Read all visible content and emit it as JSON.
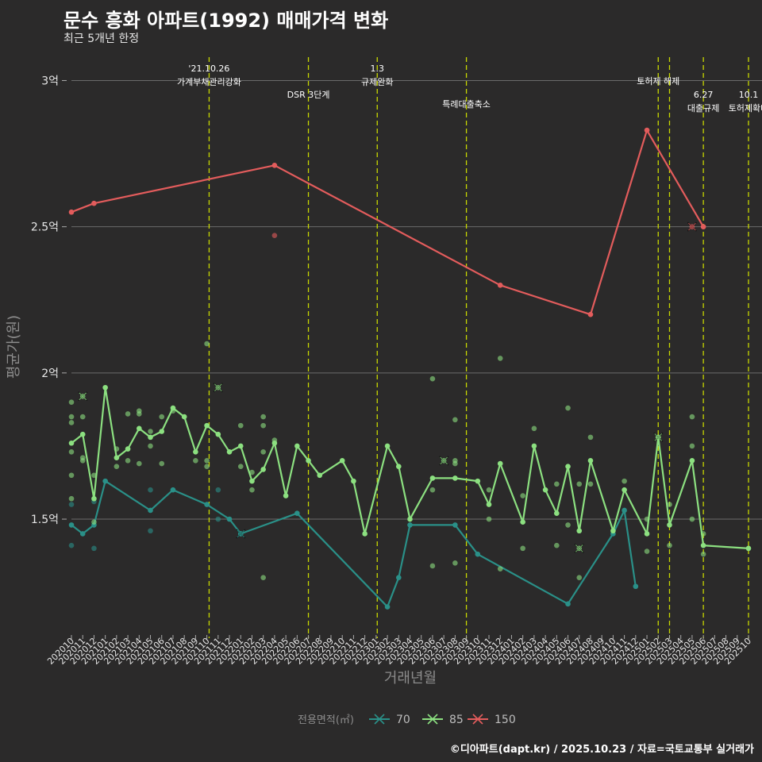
{
  "header": {
    "title": "문수 흥화 아파트(1992) 매매가격 변화",
    "subtitle": "최근 5개년 한정",
    "caption": "©디아파트(dapt.kr) / 2025.10.23 / 자료=국토교통부 실거래가"
  },
  "colors": {
    "s70": "#2a9088",
    "s85": "#8ce080",
    "s150": "#e35c5c",
    "vline": "#c8d800",
    "grid": "#6b6b6b"
  },
  "chart_data": {
    "type": "line",
    "title": "문수 흥화 아파트(1992) 매매가격 변화",
    "subtitle": "최근 5개년 한정",
    "xlabel": "거래년월",
    "ylabel": "평균가(원)",
    "ylim": [
      1.12,
      3.08
    ],
    "y_ticks": [
      {
        "value": 1.5,
        "label": "1.5억"
      },
      {
        "value": 2.0,
        "label": "2억"
      },
      {
        "value": 2.5,
        "label": "2.5억"
      },
      {
        "value": 3.0,
        "label": "3억"
      }
    ],
    "categories": [
      "202010",
      "202011",
      "202012",
      "202101",
      "202102",
      "202103",
      "202104",
      "202105",
      "202106",
      "202107",
      "202108",
      "202109",
      "202110",
      "202111",
      "202112",
      "202201",
      "202202",
      "202203",
      "202204",
      "202205",
      "202206",
      "202207",
      "202208",
      "202209",
      "202210",
      "202211",
      "202212",
      "202301",
      "202302",
      "202303",
      "202304",
      "202305",
      "202306",
      "202307",
      "202308",
      "202309",
      "202310",
      "202311",
      "202312",
      "202401",
      "202402",
      "202403",
      "202404",
      "202405",
      "202406",
      "202407",
      "202408",
      "202409",
      "202410",
      "202411",
      "202412",
      "202501",
      "202502",
      "202503",
      "202504",
      "202505",
      "202506",
      "202507",
      "202508",
      "202509",
      "202510"
    ],
    "legend": {
      "title": "전용면적(㎡)",
      "entries": [
        "70",
        "85",
        "150"
      ]
    },
    "series": [
      {
        "name": "70",
        "color": "#2a9088",
        "line": [
          [
            "202010",
            1.48
          ],
          [
            "202011",
            1.45
          ],
          [
            "202012",
            1.48
          ],
          [
            "202101",
            1.63
          ],
          [
            "202105",
            1.53
          ],
          [
            "202107",
            1.6
          ],
          [
            "202110",
            1.55
          ],
          [
            "202112",
            1.5
          ],
          [
            "202201",
            1.45
          ],
          [
            "202206",
            1.52
          ],
          [
            "202302",
            1.2
          ],
          [
            "202303",
            1.3
          ],
          [
            "202304",
            1.48
          ],
          [
            "202308",
            1.48
          ],
          [
            "202310",
            1.38
          ],
          [
            "202406",
            1.21
          ],
          [
            "202410",
            1.45
          ],
          [
            "202411",
            1.53
          ],
          [
            "202412",
            1.27
          ]
        ],
        "points": [
          [
            "202010",
            1.55
          ],
          [
            "202010",
            1.41
          ],
          [
            "202012",
            1.56
          ],
          [
            "202012",
            1.4
          ],
          [
            "202105",
            1.6
          ],
          [
            "202105",
            1.46
          ],
          [
            "202111",
            1.6
          ],
          [
            "202111",
            1.5
          ]
        ],
        "cancelled": [
          [
            "202201",
            1.45
          ]
        ]
      },
      {
        "name": "85",
        "color": "#8ce080",
        "line": [
          [
            "202010",
            1.76
          ],
          [
            "202011",
            1.79
          ],
          [
            "202012",
            1.57
          ],
          [
            "202101",
            1.95
          ],
          [
            "202102",
            1.71
          ],
          [
            "202103",
            1.74
          ],
          [
            "202104",
            1.81
          ],
          [
            "202105",
            1.78
          ],
          [
            "202106",
            1.8
          ],
          [
            "202107",
            1.88
          ],
          [
            "202108",
            1.85
          ],
          [
            "202109",
            1.73
          ],
          [
            "202110",
            1.82
          ],
          [
            "202111",
            1.79
          ],
          [
            "202112",
            1.73
          ],
          [
            "202201",
            1.75
          ],
          [
            "202202",
            1.63
          ],
          [
            "202203",
            1.67
          ],
          [
            "202204",
            1.76
          ],
          [
            "202205",
            1.58
          ],
          [
            "202206",
            1.75
          ],
          [
            "202207",
            1.7
          ],
          [
            "202208",
            1.65
          ],
          [
            "202210",
            1.7
          ],
          [
            "202211",
            1.63
          ],
          [
            "202212",
            1.45
          ],
          [
            "202302",
            1.75
          ],
          [
            "202303",
            1.68
          ],
          [
            "202304",
            1.5
          ],
          [
            "202306",
            1.64
          ],
          [
            "202308",
            1.64
          ],
          [
            "202310",
            1.63
          ],
          [
            "202311",
            1.55
          ],
          [
            "202312",
            1.69
          ],
          [
            "202402",
            1.49
          ],
          [
            "202403",
            1.75
          ],
          [
            "202404",
            1.6
          ],
          [
            "202405",
            1.52
          ],
          [
            "202406",
            1.68
          ],
          [
            "202407",
            1.46
          ],
          [
            "202408",
            1.7
          ],
          [
            "202410",
            1.46
          ],
          [
            "202411",
            1.6
          ],
          [
            "202501",
            1.45
          ],
          [
            "202502",
            1.78
          ],
          [
            "202503",
            1.48
          ],
          [
            "202505",
            1.7
          ],
          [
            "202506",
            1.41
          ],
          [
            "202510",
            1.4
          ]
        ],
        "points": [
          [
            "202010",
            1.9
          ],
          [
            "202010",
            1.85
          ],
          [
            "202010",
            1.83
          ],
          [
            "202010",
            1.73
          ],
          [
            "202010",
            1.65
          ],
          [
            "202010",
            1.57
          ],
          [
            "202011",
            1.85
          ],
          [
            "202011",
            1.71
          ],
          [
            "202011",
            1.7
          ],
          [
            "202012",
            1.65
          ],
          [
            "202012",
            1.49
          ],
          [
            "202102",
            1.74
          ],
          [
            "202102",
            1.68
          ],
          [
            "202103",
            1.86
          ],
          [
            "202103",
            1.7
          ],
          [
            "202104",
            1.87
          ],
          [
            "202104",
            1.86
          ],
          [
            "202104",
            1.69
          ],
          [
            "202105",
            1.8
          ],
          [
            "202105",
            1.75
          ],
          [
            "202106",
            1.85
          ],
          [
            "202106",
            1.69
          ],
          [
            "202107",
            1.87
          ],
          [
            "202109",
            1.7
          ],
          [
            "202110",
            2.1
          ],
          [
            "202110",
            1.7
          ],
          [
            "202110",
            1.68
          ],
          [
            "202201",
            1.82
          ],
          [
            "202201",
            1.68
          ],
          [
            "202202",
            1.66
          ],
          [
            "202202",
            1.6
          ],
          [
            "202203",
            1.85
          ],
          [
            "202203",
            1.82
          ],
          [
            "202203",
            1.73
          ],
          [
            "202203",
            1.3
          ],
          [
            "202204",
            1.77
          ],
          [
            "202306",
            1.98
          ],
          [
            "202306",
            1.6
          ],
          [
            "202306",
            1.34
          ],
          [
            "202308",
            1.84
          ],
          [
            "202308",
            1.7
          ],
          [
            "202308",
            1.69
          ],
          [
            "202308",
            1.35
          ],
          [
            "202311",
            1.6
          ],
          [
            "202311",
            1.5
          ],
          [
            "202312",
            2.05
          ],
          [
            "202312",
            1.33
          ],
          [
            "202402",
            1.58
          ],
          [
            "202402",
            1.4
          ],
          [
            "202403",
            1.81
          ],
          [
            "202405",
            1.62
          ],
          [
            "202405",
            1.41
          ],
          [
            "202406",
            1.88
          ],
          [
            "202406",
            1.48
          ],
          [
            "202407",
            1.62
          ],
          [
            "202407",
            1.3
          ],
          [
            "202408",
            1.78
          ],
          [
            "202408",
            1.62
          ],
          [
            "202411",
            1.63
          ],
          [
            "202501",
            1.5
          ],
          [
            "202501",
            1.39
          ],
          [
            "202503",
            1.55
          ],
          [
            "202503",
            1.41
          ],
          [
            "202505",
            1.85
          ],
          [
            "202505",
            1.75
          ],
          [
            "202505",
            1.5
          ],
          [
            "202506",
            1.45
          ],
          [
            "202506",
            1.38
          ]
        ],
        "cancelled": [
          [
            "202011",
            1.92
          ],
          [
            "202111",
            1.95
          ],
          [
            "202307",
            1.7
          ],
          [
            "202407",
            1.4
          ],
          [
            "202502",
            1.78
          ]
        ]
      },
      {
        "name": "150",
        "color": "#e35c5c",
        "line": [
          [
            "202010",
            2.55
          ],
          [
            "202012",
            2.58
          ],
          [
            "202204",
            2.71
          ],
          [
            "202312",
            2.3
          ],
          [
            "202408",
            2.2
          ],
          [
            "202501",
            2.83
          ],
          [
            "202506",
            2.5
          ]
        ],
        "points": [
          [
            "202204",
            2.47
          ],
          [
            "202506",
            2.5
          ]
        ],
        "cancelled": [
          [
            "202505",
            2.5
          ]
        ]
      }
    ],
    "vlines": [
      {
        "at": "202110",
        "offset": 0.2,
        "label_lines": [
          "'21.10.26",
          "가계부채관리강화"
        ],
        "label_row": 0
      },
      {
        "at": "202207",
        "offset": 0.0,
        "label_lines": [
          "DSR 3단계"
        ],
        "label_row": 2
      },
      {
        "at": "202301",
        "offset": 0.1,
        "label_lines": [
          "1.3",
          "규제완화"
        ],
        "label_row": 0
      },
      {
        "at": "202309",
        "offset": 0.0,
        "label_lines": [
          "특례대출축소"
        ],
        "label_row": 3
      },
      {
        "at": "202502",
        "offset": 0.0,
        "label_lines": [
          "토허제 해제"
        ],
        "label_row": 1
      },
      {
        "at": "202503",
        "offset": 0.0,
        "label_lines": [],
        "label_row": 0
      },
      {
        "at": "202506",
        "offset": 0.0,
        "label_lines": [
          "6.27",
          "대출규제"
        ],
        "label_row": 2
      },
      {
        "at": "202510",
        "offset": 0.0,
        "label_lines": [
          "10.1",
          "토허제확대"
        ],
        "label_row": 2
      }
    ]
  }
}
